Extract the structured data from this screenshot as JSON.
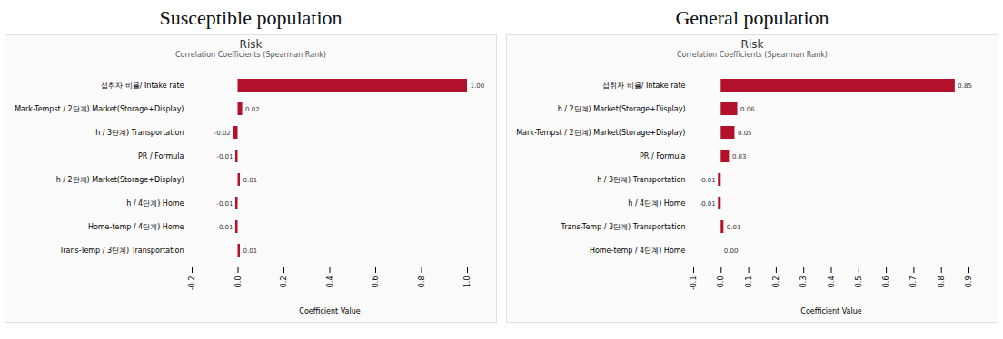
{
  "chart_data": [
    {
      "type": "bar",
      "orientation": "horizontal",
      "heading": "Susceptible population",
      "title": "Risk",
      "subtitle": "Correlation Coefficients (Spearman Rank)",
      "x_label": "Coefficient Value",
      "color": "#b3102b",
      "data_labels": true,
      "grid": false,
      "categories": [
        "섭취자 비율/ Intake rate",
        "Mark-Tempst / 2단계) Market(Storage+Display)",
        "h / 3단계) Transportation",
        "PR / Formula",
        "h / 2단계) Market(Storage+Display)",
        "h / 4단계) Home",
        "Home-temp / 4단계) Home",
        "Trans-Temp / 3단계) Transportation"
      ],
      "values": [
        1.0,
        0.02,
        -0.02,
        -0.01,
        0.01,
        -0.01,
        -0.01,
        0.01
      ],
      "value_labels": [
        "1.00",
        "0.02",
        "-0.02",
        "-0.01",
        "0.01",
        "-0.01",
        "-0.01",
        "0.01"
      ],
      "xlim": [
        -0.2,
        1.0
      ],
      "xticks": [
        {
          "value": -0.2,
          "label": "-0.2"
        },
        {
          "value": 0,
          "label": "0.0"
        },
        {
          "value": 0.2,
          "label": "0.2"
        },
        {
          "value": 0.4,
          "label": "0.4"
        },
        {
          "value": 0.6,
          "label": "0.6"
        },
        {
          "value": 0.8,
          "label": "0.8"
        },
        {
          "value": 1.0,
          "label": "1.0"
        }
      ]
    },
    {
      "type": "bar",
      "orientation": "horizontal",
      "heading": "General population",
      "title": "Risk",
      "subtitle": "Correlation Coefficients (Spearman Rank)",
      "x_label": "Coefficient Value",
      "color": "#b3102b",
      "data_labels": true,
      "grid": false,
      "categories": [
        "섭취자 비율/ Intake rate",
        "h / 2단계) Market(Storage+Display)",
        "Mark-Tempst / 2단계) Market(Storage+Display)",
        "PR / Formula",
        "h / 3단계) Transportation",
        "h / 4단계) Home",
        "Trans-Temp / 3단계) Transportation",
        "Home-temp / 4단계) Home"
      ],
      "values": [
        0.85,
        0.06,
        0.05,
        0.03,
        -0.01,
        -0.01,
        0.01,
        0.0
      ],
      "value_labels": [
        "0.85",
        "0.06",
        "0.05",
        "0.03",
        "-0.01",
        "-0.01",
        "0.01",
        "0.00"
      ],
      "xlim": [
        -0.1,
        0.9
      ],
      "xticks": [
        {
          "value": -0.1,
          "label": "-0.1"
        },
        {
          "value": 0,
          "label": "0.0"
        },
        {
          "value": 0.1,
          "label": "0.1"
        },
        {
          "value": 0.2,
          "label": "0.2"
        },
        {
          "value": 0.3,
          "label": "0.3"
        },
        {
          "value": 0.4,
          "label": "0.4"
        },
        {
          "value": 0.5,
          "label": "0.5"
        },
        {
          "value": 0.6,
          "label": "0.6"
        },
        {
          "value": 0.7,
          "label": "0.7"
        },
        {
          "value": 0.8,
          "label": "0.8"
        },
        {
          "value": 0.9,
          "label": "0.9"
        }
      ]
    }
  ]
}
